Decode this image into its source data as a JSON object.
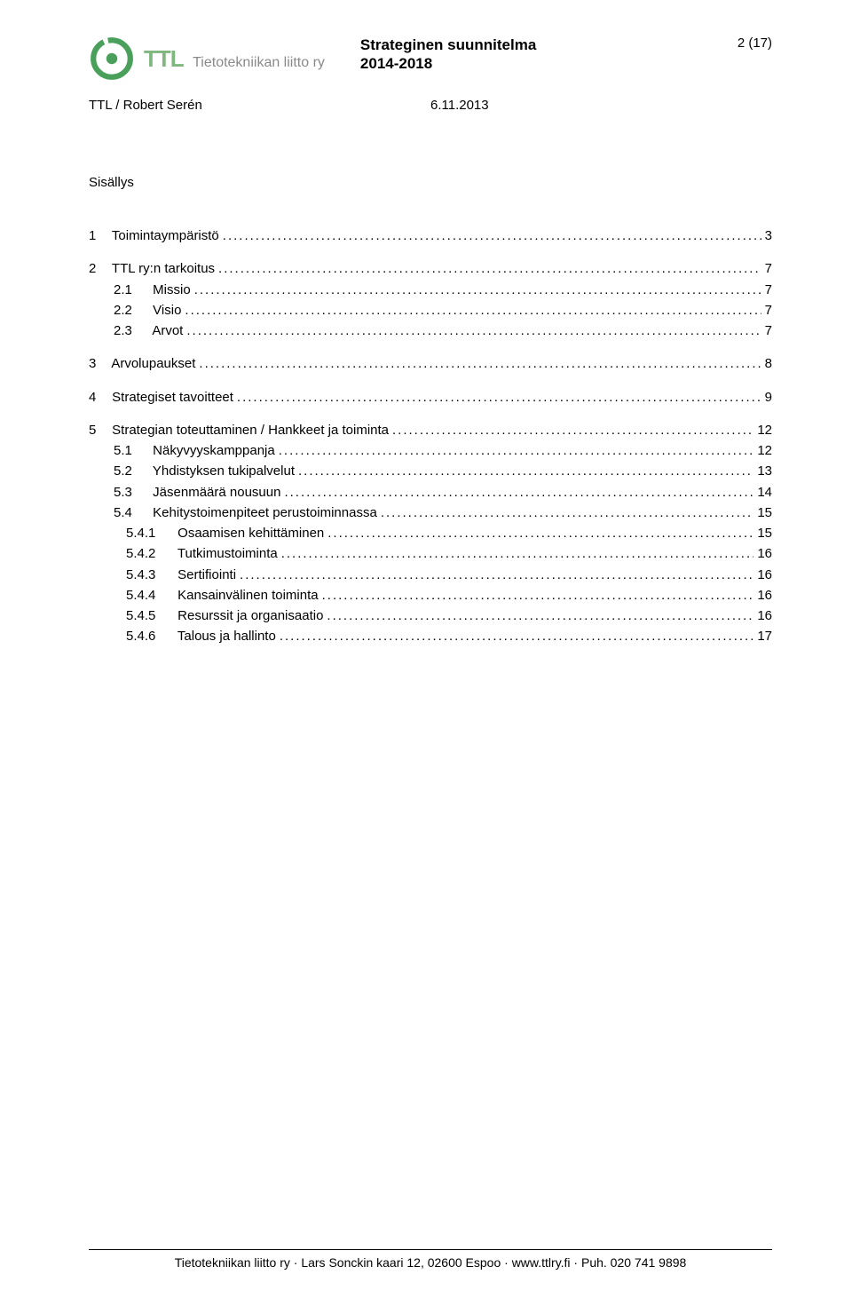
{
  "logo": {
    "abbr": "TTL",
    "fullname": "Tietotekniikan liitto ry",
    "ring_color": "#4aa05a",
    "text_color_main": "#7fb77e",
    "text_color_sub": "#8a8a8a"
  },
  "header": {
    "title": "Strateginen suunnitelma",
    "years": "2014-2018",
    "page_label": "2 (17)"
  },
  "subheader": {
    "author": "TTL / Robert Serén",
    "date": "6.11.2013"
  },
  "toc_heading": "Sisällys",
  "toc": [
    {
      "level": 0,
      "num": "1",
      "title": "Toimintaympäristö",
      "page": "3",
      "gap_after": true
    },
    {
      "level": 0,
      "num": "2",
      "title": "TTL ry:n tarkoitus",
      "page": "7"
    },
    {
      "level": 1,
      "num": "2.1",
      "title": "Missio",
      "page": "7"
    },
    {
      "level": 1,
      "num": "2.2",
      "title": "Visio",
      "page": "7"
    },
    {
      "level": 1,
      "num": "2.3",
      "title": "Arvot",
      "page": "7",
      "gap_after": true
    },
    {
      "level": 0,
      "num": "3",
      "title": "Arvolupaukset",
      "page": "8",
      "gap_after": true
    },
    {
      "level": 0,
      "num": "4",
      "title": "Strategiset tavoitteet",
      "page": "9",
      "gap_after": true
    },
    {
      "level": 0,
      "num": "5",
      "title": "Strategian toteuttaminen / Hankkeet ja toiminta",
      "page": "12"
    },
    {
      "level": 1,
      "num": "5.1",
      "title": "Näkyvyyskamppanja",
      "page": "12"
    },
    {
      "level": 1,
      "num": "5.2",
      "title": "Yhdistyksen tukipalvelut",
      "page": "13"
    },
    {
      "level": 1,
      "num": "5.3",
      "title": "Jäsenmäärä nousuun",
      "page": "14"
    },
    {
      "level": 1,
      "num": "5.4",
      "title": "Kehitystoimenpiteet perustoiminnassa",
      "page": "15"
    },
    {
      "level": 2,
      "num": "5.4.1",
      "title": "Osaamisen kehittäminen",
      "page": "15"
    },
    {
      "level": 2,
      "num": "5.4.2",
      "title": "Tutkimustoiminta",
      "page": "16"
    },
    {
      "level": 2,
      "num": "5.4.3",
      "title": "Sertifiointi",
      "page": "16"
    },
    {
      "level": 2,
      "num": "5.4.4",
      "title": "Kansainvälinen toiminta",
      "page": "16"
    },
    {
      "level": 2,
      "num": "5.4.5",
      "title": "Resurssit ja organisaatio",
      "page": "16"
    },
    {
      "level": 2,
      "num": "5.4.6",
      "title": "Talous ja hallinto",
      "page": "17"
    }
  ],
  "footer": {
    "text": "Tietotekniikan liitto ry · Lars Sonckin kaari 12, 02600 Espoo · www.ttlry.fi · Puh. 020 741 9898"
  }
}
